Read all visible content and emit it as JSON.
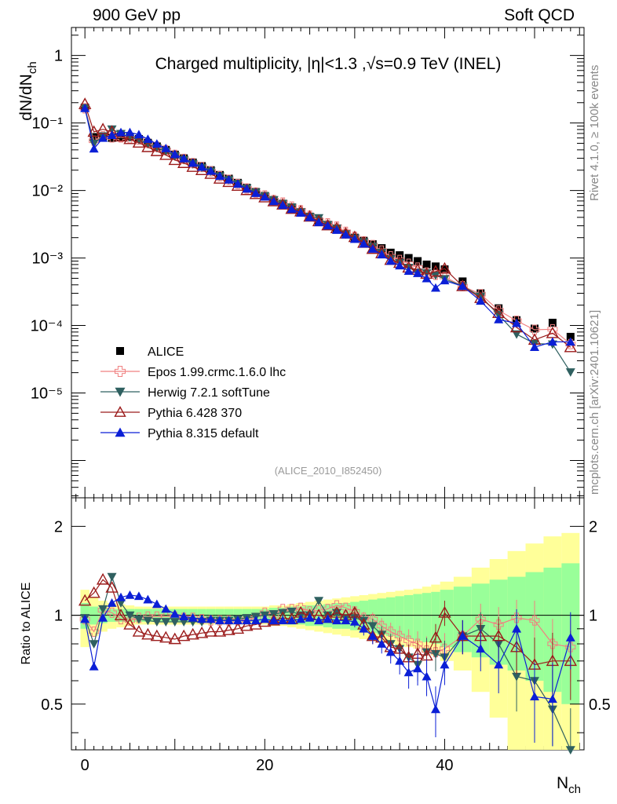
{
  "header": {
    "left": "900 GeV pp",
    "right": "Soft QCD"
  },
  "side_labels": {
    "rivet": "Rivet 4.1.0, ≥ 100k events",
    "mcplots": "mcplots.cern.ch [arXiv:2401.10621]"
  },
  "chart_data": {
    "type": "line",
    "title": "Charged multiplicity, |η|<1.3 ,√s=0.9 TeV (INEL)",
    "analysis_tag": "(ALICE_2010_I852450)",
    "xlabel": "N",
    "xlabel_sub": "ch",
    "ylabel": "dN/dN",
    "ylabel_sub": "ch",
    "ratio_ylabel": "Ratio to ALICE",
    "xlim": [
      -1.5,
      55.5
    ],
    "ylim": [
      2.8e-07,
      2.6
    ],
    "ratio_ylim": [
      0.35,
      2.5
    ],
    "x_ticks": [
      "0",
      "20",
      "40"
    ],
    "y_ticks": [
      "10⁻⁵",
      "10⁻⁴",
      "10⁻³",
      "10⁻²",
      "10⁻¹",
      "1"
    ],
    "ratio_ticks": [
      "0.5",
      "1",
      "2"
    ],
    "legend": [
      {
        "name": "ALICE",
        "color": "#000000",
        "marker": "square"
      },
      {
        "name": "Epos 1.99.crmc.1.6.0 lhc",
        "color": "#f08080",
        "marker": "cross"
      },
      {
        "name": "Herwig 7.2.1 softTune",
        "color": "#2f6060",
        "marker": "tri-down"
      },
      {
        "name": "Pythia 6.428 370",
        "color": "#9b1b1b",
        "marker": "tri-open"
      },
      {
        "name": "Pythia 8.315 default",
        "color": "#0b1fd6",
        "marker": "tri-up"
      }
    ],
    "data_x": [
      0,
      1,
      2,
      3,
      4,
      5,
      6,
      7,
      8,
      9,
      10,
      11,
      12,
      13,
      14,
      15,
      16,
      17,
      18,
      19,
      20,
      21,
      22,
      23,
      24,
      25,
      26,
      27,
      28,
      29,
      30,
      31,
      32,
      33,
      34,
      35,
      36,
      37,
      38,
      39,
      40,
      42,
      44,
      46,
      48,
      50,
      52,
      54
    ],
    "data_y": [
      0.17,
      0.062,
      0.061,
      0.06,
      0.063,
      0.062,
      0.058,
      0.051,
      0.045,
      0.04,
      0.034,
      0.03,
      0.026,
      0.023,
      0.02,
      0.017,
      0.015,
      0.013,
      0.011,
      0.0095,
      0.0083,
      0.0072,
      0.0063,
      0.0055,
      0.0048,
      0.0041,
      0.0035,
      0.0031,
      0.0027,
      0.0023,
      0.002,
      0.0018,
      0.0016,
      0.0014,
      0.0012,
      0.0011,
      0.001,
      0.0009,
      0.0008,
      0.00075,
      0.00068,
      0.00045,
      0.0003,
      0.00018,
      0.00012,
      9e-05,
      0.00011,
      6.8e-05
    ],
    "ratio_band_x": [
      -0.5,
      0.5,
      1.5,
      2.5,
      3.5,
      4.5,
      5.5,
      6.5,
      7.5,
      8.5,
      9.5,
      10.5,
      11.5,
      12.5,
      13.5,
      14.5,
      15.5,
      16.5,
      17.5,
      18.5,
      19.5,
      20.5,
      21.5,
      22.5,
      23.5,
      24.5,
      25.5,
      26.5,
      27.5,
      28.5,
      29.5,
      30.5,
      31.5,
      32.5,
      33.5,
      34.5,
      35.5,
      36.5,
      37.5,
      38.5,
      39.5,
      41,
      43,
      45,
      47,
      49,
      51,
      53,
      55
    ],
    "band_green": [
      0.1,
      0.07,
      0.06,
      0.05,
      0.05,
      0.05,
      0.05,
      0.05,
      0.05,
      0.05,
      0.05,
      0.05,
      0.05,
      0.05,
      0.05,
      0.05,
      0.05,
      0.05,
      0.05,
      0.05,
      0.05,
      0.06,
      0.06,
      0.07,
      0.07,
      0.08,
      0.08,
      0.09,
      0.1,
      0.1,
      0.11,
      0.12,
      0.13,
      0.14,
      0.15,
      0.16,
      0.17,
      0.18,
      0.19,
      0.2,
      0.22,
      0.25,
      0.28,
      0.32,
      0.35,
      0.4,
      0.45,
      0.5
    ],
    "band_yellow": [
      0.22,
      0.15,
      0.12,
      0.1,
      0.09,
      0.08,
      0.07,
      0.07,
      0.07,
      0.07,
      0.07,
      0.07,
      0.07,
      0.07,
      0.07,
      0.07,
      0.07,
      0.07,
      0.07,
      0.07,
      0.07,
      0.08,
      0.08,
      0.09,
      0.1,
      0.11,
      0.12,
      0.13,
      0.14,
      0.15,
      0.16,
      0.17,
      0.18,
      0.19,
      0.2,
      0.21,
      0.22,
      0.23,
      0.25,
      0.27,
      0.3,
      0.35,
      0.45,
      0.55,
      0.65,
      0.75,
      0.85,
      0.9
    ],
    "series": [
      {
        "name": "Epos 1.99.crmc.1.6.0 lhc",
        "color": "#f08080",
        "marker": "cross",
        "x": [
          0,
          1,
          2,
          3,
          4,
          5,
          6,
          7,
          8,
          9,
          10,
          11,
          12,
          13,
          14,
          15,
          16,
          17,
          18,
          19,
          20,
          21,
          22,
          23,
          24,
          25,
          26,
          27,
          28,
          29,
          30,
          31,
          32,
          33,
          34,
          35,
          36,
          37,
          38,
          39,
          40,
          42,
          44,
          46,
          48,
          50,
          52,
          54
        ],
        "ratio": [
          0.97,
          0.88,
          1.04,
          1.02,
          0.97,
          0.96,
          0.98,
          0.99,
          0.99,
          0.99,
          0.99,
          0.98,
          0.98,
          0.97,
          0.96,
          0.96,
          0.96,
          0.96,
          0.97,
          0.98,
          1.02,
          1.0,
          1.05,
          1.05,
          1.06,
          1.03,
          1.04,
          1.05,
          1.08,
          1.06,
          1.03,
          0.98,
          0.97,
          0.92,
          0.88,
          0.85,
          0.82,
          0.8,
          0.76,
          0.75,
          0.77,
          0.85,
          0.97,
          0.93,
          0.98,
          0.96,
          0.8,
          0.78
        ]
      },
      {
        "name": "Herwig 7.2.1 softTune",
        "color": "#2f6060",
        "marker": "tri-down",
        "x": [
          0,
          1,
          2,
          3,
          4,
          5,
          6,
          7,
          8,
          9,
          10,
          11,
          12,
          13,
          14,
          15,
          16,
          17,
          18,
          19,
          20,
          21,
          22,
          23,
          24,
          25,
          26,
          27,
          28,
          29,
          30,
          31,
          32,
          33,
          34,
          35,
          36,
          37,
          38,
          39,
          40,
          42,
          44,
          46,
          48,
          50,
          52,
          54
        ],
        "ratio": [
          0.98,
          0.8,
          1.05,
          1.35,
          1.1,
          1.0,
          0.97,
          0.96,
          0.95,
          0.95,
          0.95,
          0.95,
          0.95,
          0.95,
          0.96,
          0.96,
          0.96,
          0.97,
          0.98,
          0.99,
          1.0,
          1.01,
          1.02,
          1.03,
          1.0,
          1.0,
          1.12,
          1.0,
          1.02,
          0.98,
          0.98,
          0.96,
          0.92,
          0.86,
          0.8,
          0.77,
          0.72,
          0.68,
          0.75,
          0.74,
          0.72,
          0.85,
          0.9,
          0.8,
          0.62,
          0.6,
          0.48,
          0.3
        ]
      },
      {
        "name": "Pythia 6.428 370",
        "color": "#9b1b1b",
        "marker": "tri-open",
        "x": [
          0,
          1,
          2,
          3,
          4,
          5,
          6,
          7,
          8,
          9,
          10,
          11,
          12,
          13,
          14,
          15,
          16,
          17,
          18,
          19,
          20,
          21,
          22,
          23,
          24,
          25,
          26,
          27,
          28,
          29,
          30,
          31,
          32,
          33,
          34,
          35,
          36,
          37,
          38,
          39,
          40,
          42,
          44,
          46,
          48,
          50,
          52,
          54
        ],
        "ratio": [
          1.12,
          1.19,
          1.32,
          1.24,
          1.0,
          0.93,
          0.88,
          0.86,
          0.85,
          0.84,
          0.83,
          0.85,
          0.86,
          0.87,
          0.88,
          0.88,
          0.89,
          0.9,
          0.92,
          0.93,
          0.95,
          0.96,
          0.98,
          0.97,
          1.02,
          1.0,
          1.0,
          0.98,
          1.02,
          1.0,
          1.02,
          0.93,
          0.85,
          0.84,
          0.78,
          0.77,
          0.72,
          0.74,
          0.73,
          0.84,
          1.02,
          0.85,
          0.85,
          0.85,
          0.78,
          0.68,
          0.7,
          0.7
        ]
      },
      {
        "name": "Pythia 8.315 default",
        "color": "#0b1fd6",
        "marker": "tri-up",
        "x": [
          0,
          1,
          2,
          3,
          4,
          5,
          6,
          7,
          8,
          9,
          10,
          11,
          12,
          13,
          14,
          15,
          16,
          17,
          18,
          19,
          20,
          21,
          22,
          23,
          24,
          25,
          26,
          27,
          28,
          29,
          30,
          31,
          32,
          33,
          34,
          35,
          36,
          37,
          38,
          39,
          40,
          42,
          44,
          46,
          48,
          50,
          52,
          54
        ],
        "ratio": [
          0.97,
          0.67,
          0.98,
          1.1,
          1.15,
          1.17,
          1.16,
          1.13,
          1.09,
          1.05,
          1.01,
          0.99,
          0.98,
          0.97,
          0.97,
          0.96,
          0.96,
          0.96,
          0.96,
          0.96,
          0.97,
          0.96,
          0.96,
          0.96,
          0.97,
          0.98,
          0.96,
          0.97,
          0.96,
          0.96,
          0.95,
          0.9,
          0.85,
          0.8,
          0.75,
          0.7,
          0.64,
          0.66,
          0.62,
          0.48,
          0.68,
          0.85,
          0.77,
          0.68,
          0.9,
          0.53,
          0.52,
          0.84
        ]
      }
    ]
  }
}
